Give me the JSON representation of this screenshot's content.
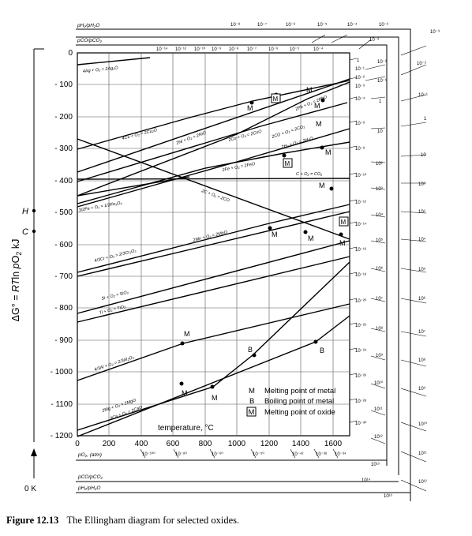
{
  "diagram": {
    "y_axis": {
      "label_parts": [
        "ΔG° = ",
        "RT",
        "ln ",
        "p",
        "O",
        "2",
        " kJ"
      ],
      "ticks": [
        "0",
        "- 100",
        "- 200",
        "- 300",
        "- 400",
        "- 500",
        "- 600",
        "- 700",
        "- 800",
        "- 900",
        "- 1000",
        "- 1100",
        "- 1200"
      ],
      "H": "H",
      "C": "C",
      "zero_K": "0 K"
    },
    "x_axis": {
      "label": "temperature, °C",
      "ticks": [
        "0",
        "200",
        "400",
        "600",
        "800",
        "1000",
        "1200",
        "1400",
        "1600"
      ]
    },
    "scales": {
      "ph2_top_label": "pH₂/pH₂O",
      "pco_top_label": "pCO/pCO₂",
      "po2_bottom_label": "pO₂, (atm)",
      "pco_bottom_label": "pCO/pCO₂",
      "ph2_bottom_label": "pH₂/pH₂O",
      "ph2_top_ticks": [
        "10⁻⁸",
        "10⁻⁷",
        "10⁻⁶",
        "10⁻⁵",
        "10⁻⁴",
        "10⁻³"
      ],
      "pco_top_ticks": [
        "10⁻¹⁴",
        "10⁻¹²",
        "10⁻¹⁰",
        "10⁻⁹",
        "10⁻⁸",
        "10⁻⁷",
        "10⁻⁶",
        "10⁻⁵",
        "10⁻⁴",
        "10⁻³"
      ],
      "po2_inner_right": [
        "1",
        "10⁻¹",
        "10⁻²",
        "10⁻³",
        "10⁻⁴",
        "10⁻⁶",
        "10⁻⁸",
        "10⁻¹⁰",
        "10⁻¹²",
        "10⁻¹⁴",
        "10⁻¹⁶",
        "10⁻¹⁸",
        "10⁻²⁰",
        "10⁻²²",
        "10⁻²⁴",
        "10⁻²⁶",
        "10⁻²⁸",
        "10⁻³⁰"
      ],
      "pco_middle_right": [
        "10⁻²",
        "10⁻¹",
        "1",
        "10",
        "10²",
        "10³",
        "10⁴",
        "10⁵",
        "10⁶",
        "10⁷",
        "10⁸",
        "10⁹",
        "10¹⁰",
        "10¹¹",
        "10¹²",
        "10¹³",
        "10¹⁴"
      ],
      "ph2_outer_right": [
        "10⁻³",
        "10⁻²",
        "10⁻¹",
        "1",
        "10",
        "10²",
        "10³",
        "10⁴",
        "10⁵",
        "10⁶",
        "10⁷",
        "10⁸",
        "10⁹",
        "10¹⁰",
        "10¹¹",
        "10¹²",
        "10¹³"
      ],
      "po2_bottom_ticks": [
        "10⁻¹⁰⁰",
        "10⁻⁸⁰",
        "10⁻⁶⁰",
        "10⁻⁵⁰",
        "10⁻⁴²",
        "10⁻³⁸",
        "10⁻³⁴"
      ]
    },
    "reactions": [
      {
        "label": "4Ag + O₂ = 2Ag₂O"
      },
      {
        "label": "4Cu + O₂ = 2Cu₂O"
      },
      {
        "label": "2Ni + O₂ = 2NiO"
      },
      {
        "label": "2Co + O₂ = 2CoO"
      },
      {
        "label": "2Pb + O₂ = 2PbO"
      },
      {
        "label": "2CO + O₂ = 2CO₂"
      },
      {
        "label": "2H₂ + O₂ = 2H₂O"
      },
      {
        "label": "2Fe + O₂ = 2FeO"
      },
      {
        "label": "C + O₂ = CO₂"
      },
      {
        "label": "3/2Fe + O₂ = 1/2Fe₃O₄"
      },
      {
        "label": "2C + O₂ = 2CO"
      },
      {
        "label": "2Mn + O₂ = 2MnO"
      },
      {
        "label": "4/3Cr + O₂ = 2/3Cr₂O₃"
      },
      {
        "label": "Si + O₂ = SiO₂"
      },
      {
        "label": "Ti + O₂ = TiO₂"
      },
      {
        "label": "4/3Al + O₂ = 2/3Al₂O₃"
      },
      {
        "label": "2Mg + O₂ = 2MgO"
      },
      {
        "label": "2Ca + O₂ = 2CaO"
      }
    ],
    "legend": [
      {
        "symbol": "M",
        "text": "Melting point of metal"
      },
      {
        "symbol": "B",
        "text": "Boiling point of metal"
      },
      {
        "symbol": "M",
        "text": "Melting point of oxide"
      }
    ],
    "markers": {
      "M": "M",
      "B": "B"
    }
  },
  "caption": {
    "number": "Figure 12.13",
    "text": "The Ellingham diagram for selected oxides."
  }
}
